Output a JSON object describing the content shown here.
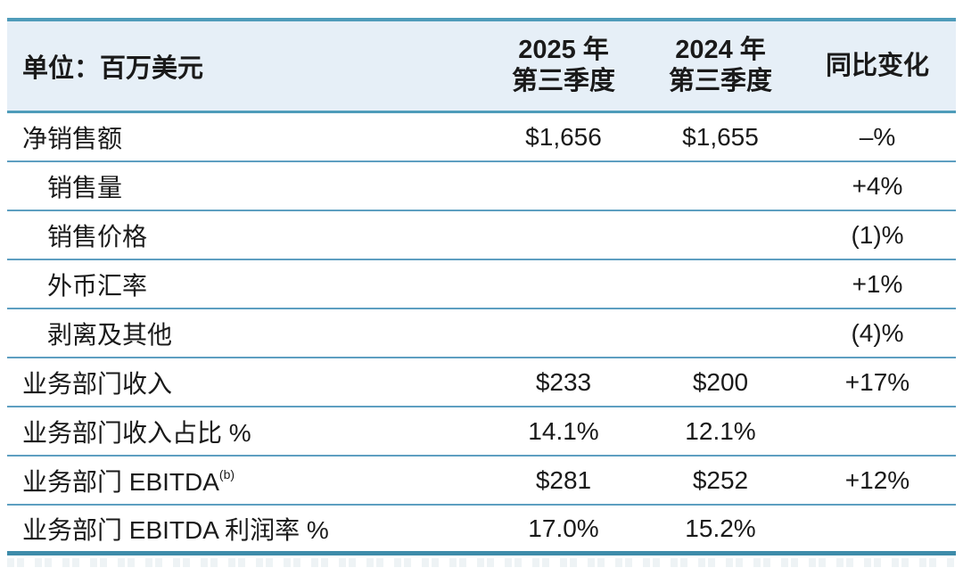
{
  "table": {
    "unit_label": "单位：百万美元",
    "col_headers": [
      {
        "line1": "2025 年",
        "line2": "第三季度"
      },
      {
        "line1": "2024 年",
        "line2": "第三季度"
      },
      {
        "line1": "同比变化",
        "line2": ""
      }
    ],
    "rows": [
      {
        "label": "净销售额",
        "indent": false,
        "q3_2025": "$1,656",
        "q3_2024": "$1,655",
        "yoy": "–%"
      },
      {
        "label": "销售量",
        "indent": true,
        "q3_2025": "",
        "q3_2024": "",
        "yoy": "+4%"
      },
      {
        "label": "销售价格",
        "indent": true,
        "q3_2025": "",
        "q3_2024": "",
        "yoy": "(1)%"
      },
      {
        "label": "外币汇率",
        "indent": true,
        "q3_2025": "",
        "q3_2024": "",
        "yoy": "+1%"
      },
      {
        "label": "剥离及其他",
        "indent": true,
        "q3_2025": "",
        "q3_2024": "",
        "yoy": "(4)%"
      },
      {
        "label": "业务部门收入",
        "indent": false,
        "q3_2025": "$233",
        "q3_2024": "$200",
        "yoy": "+17%"
      },
      {
        "label": "业务部门收入占比 %",
        "indent": false,
        "q3_2025": "14.1%",
        "q3_2024": "12.1%",
        "yoy": ""
      },
      {
        "label": "业务部门 EBITDA",
        "label_sup": "(b)",
        "indent": false,
        "q3_2025": "$281",
        "q3_2024": "$252",
        "yoy": "+12%"
      },
      {
        "label": "业务部门 EBITDA 利润率 %",
        "indent": false,
        "q3_2025": "17.0%",
        "q3_2024": "15.2%",
        "yoy": ""
      }
    ],
    "colors": {
      "header_bg": "#e6eff7",
      "top_border": "#4f9cba",
      "row_divider": "#5e9fc1",
      "bottom_border": "#3e8caa",
      "text": "#1a1a1a"
    }
  }
}
